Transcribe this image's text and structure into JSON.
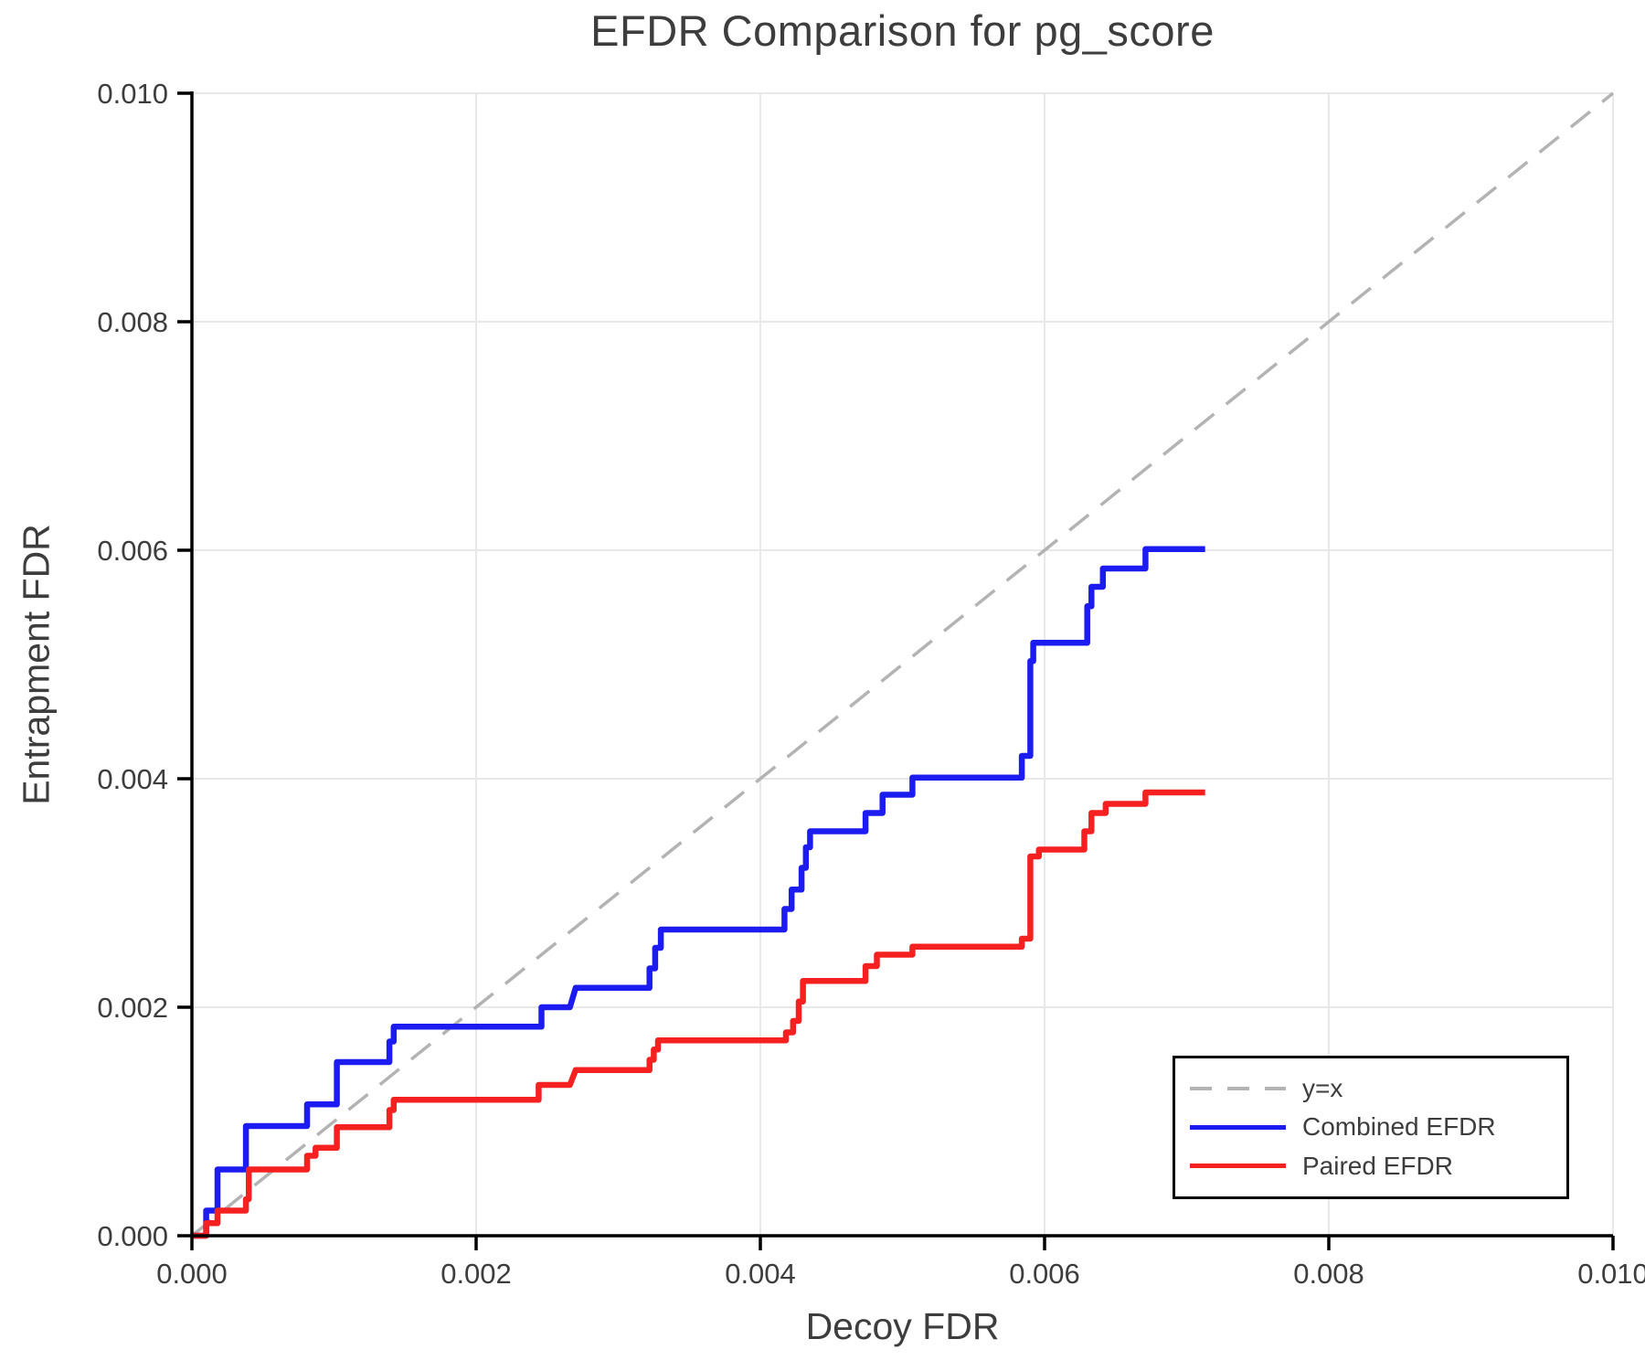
{
  "figure": {
    "title": "EFDR Comparison for pg_score",
    "xlabel": "Decoy FDR",
    "ylabel": "Entrapment FDR"
  },
  "legend": {
    "position": "lower right",
    "items": [
      {
        "label": "y=x",
        "color": "#b3b3b3",
        "style": "dashed"
      },
      {
        "label": "Combined EFDR",
        "color": "#1c1cf0",
        "style": "solid"
      },
      {
        "label": "Paired EFDR",
        "color": "#f52020",
        "style": "solid"
      }
    ]
  },
  "style": {
    "grid_color": "#e8e8e8",
    "spine_color": "#000000",
    "text_color": "#3d3d3d",
    "background": "#ffffff"
  },
  "chart_data": {
    "type": "line",
    "title": "EFDR Comparison for pg_score",
    "xlabel": "Decoy FDR",
    "ylabel": "Entrapment FDR",
    "xlim": [
      0,
      0.01
    ],
    "ylim": [
      0,
      0.01
    ],
    "x_ticks": [
      0,
      0.002,
      0.004,
      0.006,
      0.008,
      0.01
    ],
    "y_ticks": [
      0,
      0.002,
      0.004,
      0.006,
      0.008,
      0.01
    ],
    "x_tick_labels": [
      "0.000",
      "0.002",
      "0.004",
      "0.006",
      "0.008",
      "0.010"
    ],
    "y_tick_labels": [
      "0.000",
      "0.002",
      "0.004",
      "0.006",
      "0.008",
      "0.010"
    ],
    "grid": true,
    "legend_position": "lower right",
    "reference_line": {
      "name": "y=x",
      "color": "#b3b3b3",
      "dashed": true,
      "points": [
        [
          0,
          0
        ],
        [
          0.01,
          0.01
        ]
      ]
    },
    "series": [
      {
        "name": "Combined EFDR",
        "color": "#1c1cf0",
        "points": [
          [
            0,
            0
          ],
          [
            0.0001,
            0
          ],
          [
            0.0001,
            0.00022
          ],
          [
            0.00018,
            0.00022
          ],
          [
            0.00018,
            0.00058
          ],
          [
            0.00038,
            0.00058
          ],
          [
            0.00038,
            0.00096
          ],
          [
            0.00081,
            0.00096
          ],
          [
            0.00081,
            0.00115
          ],
          [
            0.00102,
            0.00115
          ],
          [
            0.00102,
            0.00152
          ],
          [
            0.00139,
            0.00152
          ],
          [
            0.00139,
            0.0017
          ],
          [
            0.00142,
            0.0017
          ],
          [
            0.00142,
            0.00183
          ],
          [
            0.00246,
            0.00183
          ],
          [
            0.00246,
            0.002
          ],
          [
            0.00266,
            0.002
          ],
          [
            0.0027,
            0.00217
          ],
          [
            0.00322,
            0.00217
          ],
          [
            0.00322,
            0.00234
          ],
          [
            0.00326,
            0.00234
          ],
          [
            0.00326,
            0.00252
          ],
          [
            0.0033,
            0.00252
          ],
          [
            0.0033,
            0.00268
          ],
          [
            0.00417,
            0.00268
          ],
          [
            0.00417,
            0.00286
          ],
          [
            0.00422,
            0.00286
          ],
          [
            0.00422,
            0.00303
          ],
          [
            0.00429,
            0.00303
          ],
          [
            0.00429,
            0.00322
          ],
          [
            0.00432,
            0.00322
          ],
          [
            0.00432,
            0.0034
          ],
          [
            0.00435,
            0.0034
          ],
          [
            0.00435,
            0.00354
          ],
          [
            0.00474,
            0.00354
          ],
          [
            0.00474,
            0.0037
          ],
          [
            0.00486,
            0.0037
          ],
          [
            0.00486,
            0.00386
          ],
          [
            0.00507,
            0.00386
          ],
          [
            0.00507,
            0.00401
          ],
          [
            0.00584,
            0.00401
          ],
          [
            0.00584,
            0.0042
          ],
          [
            0.0059,
            0.0042
          ],
          [
            0.0059,
            0.00503
          ],
          [
            0.00592,
            0.00503
          ],
          [
            0.00592,
            0.00519
          ],
          [
            0.0063,
            0.00519
          ],
          [
            0.0063,
            0.00551
          ],
          [
            0.00633,
            0.00551
          ],
          [
            0.00633,
            0.00568
          ],
          [
            0.00641,
            0.00568
          ],
          [
            0.00641,
            0.00584
          ],
          [
            0.00671,
            0.00584
          ],
          [
            0.00671,
            0.00601
          ],
          [
            0.00713,
            0.00601
          ]
        ]
      },
      {
        "name": "Paired EFDR",
        "color": "#f52020",
        "points": [
          [
            0,
            0
          ],
          [
            0.0001,
            0
          ],
          [
            0.0001,
            0.00011
          ],
          [
            0.00018,
            0.00011
          ],
          [
            0.00018,
            0.00022
          ],
          [
            0.00038,
            0.00022
          ],
          [
            0.00038,
            0.00032
          ],
          [
            0.0004,
            0.00032
          ],
          [
            0.0004,
            0.00058
          ],
          [
            0.00081,
            0.00058
          ],
          [
            0.00081,
            0.0007
          ],
          [
            0.00087,
            0.0007
          ],
          [
            0.00087,
            0.00077
          ],
          [
            0.00102,
            0.00077
          ],
          [
            0.00102,
            0.00095
          ],
          [
            0.00139,
            0.00095
          ],
          [
            0.00139,
            0.0011
          ],
          [
            0.00142,
            0.0011
          ],
          [
            0.00142,
            0.00119
          ],
          [
            0.00244,
            0.00119
          ],
          [
            0.00244,
            0.00132
          ],
          [
            0.00266,
            0.00132
          ],
          [
            0.0027,
            0.00145
          ],
          [
            0.00322,
            0.00145
          ],
          [
            0.00322,
            0.00154
          ],
          [
            0.00325,
            0.00154
          ],
          [
            0.00325,
            0.00163
          ],
          [
            0.00328,
            0.00163
          ],
          [
            0.00328,
            0.00171
          ],
          [
            0.00418,
            0.00171
          ],
          [
            0.00418,
            0.00178
          ],
          [
            0.00423,
            0.00178
          ],
          [
            0.00423,
            0.00188
          ],
          [
            0.00427,
            0.00188
          ],
          [
            0.00427,
            0.00205
          ],
          [
            0.0043,
            0.00205
          ],
          [
            0.0043,
            0.00223
          ],
          [
            0.00474,
            0.00223
          ],
          [
            0.00474,
            0.00236
          ],
          [
            0.00482,
            0.00236
          ],
          [
            0.00482,
            0.00246
          ],
          [
            0.00507,
            0.00246
          ],
          [
            0.00507,
            0.00253
          ],
          [
            0.00584,
            0.00253
          ],
          [
            0.00584,
            0.0026
          ],
          [
            0.0059,
            0.0026
          ],
          [
            0.0059,
            0.00332
          ],
          [
            0.00596,
            0.00332
          ],
          [
            0.00596,
            0.00338
          ],
          [
            0.00628,
            0.00338
          ],
          [
            0.00628,
            0.00354
          ],
          [
            0.00633,
            0.00354
          ],
          [
            0.00633,
            0.0037
          ],
          [
            0.00643,
            0.0037
          ],
          [
            0.00643,
            0.00378
          ],
          [
            0.00671,
            0.00378
          ],
          [
            0.00671,
            0.00388
          ],
          [
            0.00713,
            0.00388
          ]
        ]
      }
    ]
  }
}
